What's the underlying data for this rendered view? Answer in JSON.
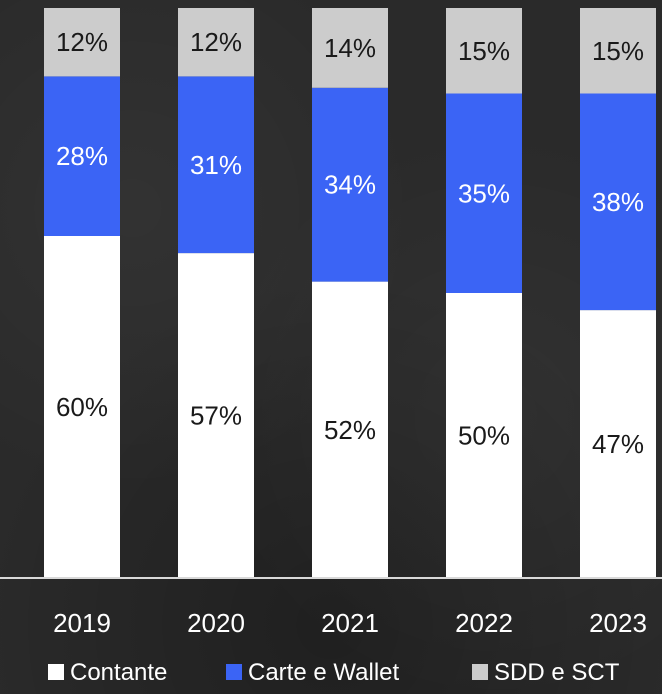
{
  "chart_data": {
    "type": "bar",
    "stacked": true,
    "categories": [
      "2019",
      "2020",
      "2021",
      "2022",
      "2023"
    ],
    "series": [
      {
        "name": "Contante",
        "color": "#ffffff",
        "values": [
          60,
          57,
          52,
          50,
          47
        ],
        "labels": [
          "60%",
          "57%",
          "52%",
          "50%",
          "47%"
        ]
      },
      {
        "name": "Carte e Wallet",
        "color": "#3b64f5",
        "values": [
          28,
          31,
          34,
          35,
          38
        ],
        "labels": [
          "28%",
          "31%",
          "34%",
          "35%",
          "38%"
        ]
      },
      {
        "name": "SDD e SCT",
        "color": "#cccccc",
        "values": [
          12,
          12,
          14,
          15,
          15
        ],
        "labels": [
          "12%",
          "12%",
          "14%",
          "15%",
          "15%"
        ]
      }
    ],
    "ylim": [
      0,
      100
    ],
    "legend": "bottom",
    "grid": false
  }
}
